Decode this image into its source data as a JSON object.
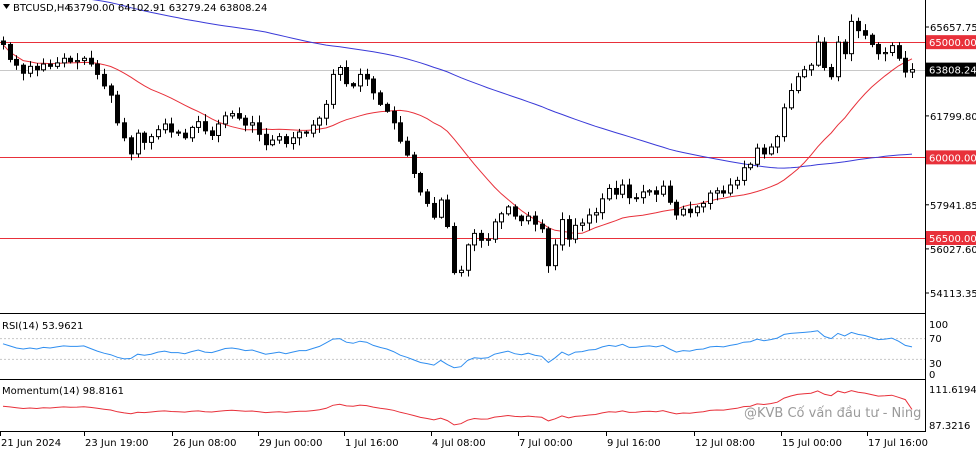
{
  "header": {
    "symbol_tf": "BTCUSD,H4",
    "ohlc": "63790.00 64102.91 63279.24 63808.24"
  },
  "colors": {
    "up_candle": "#ffffff",
    "down_candle": "#000000",
    "level_line": "#e8303a",
    "ma_fast": "#e8303a",
    "ma_slow": "#3a3ad8",
    "rsi_line": "#2f8ef0",
    "momentum_line": "#e8303a",
    "price_tag_bg": "#000000"
  },
  "price_axis": {
    "ticks": [
      "65657.75",
      "61799.80",
      "57941.85",
      "56027.60",
      "54113.35"
    ],
    "tick_values": [
      65657.75,
      61799.8,
      57941.85,
      56027.6,
      54113.35
    ],
    "level_tags": [
      "65000.00",
      "60000.00",
      "56500.00"
    ],
    "current_price": "63808.24"
  },
  "indicators": {
    "rsi": {
      "label": "RSI(14) 53.9621",
      "ticks": [
        "100",
        "70",
        "30",
        "0"
      ]
    },
    "momentum": {
      "label": "Momentum(14) 98.8161",
      "ticks": [
        "111.6194",
        "87.3216"
      ]
    }
  },
  "time_axis": {
    "labels": [
      "21 Jun 2024",
      "23 Jun 19:00",
      "26 Jun 08:00",
      "29 Jun 00:00",
      "1 Jul 16:00",
      "4 Jul 08:00",
      "7 Jul 00:00",
      "9 Jul 16:00",
      "12 Jul 08:00",
      "15 Jul 00:00",
      "17 Jul 16:00"
    ]
  },
  "watermark": "@KVB Cố vấn đầu tư - Ning",
  "chart_data": [
    {
      "type": "candlestick",
      "name": "BTCUSD,H4",
      "y_range": [
        53000,
        66500
      ],
      "horizontal_levels": [
        65000,
        60000,
        56500
      ],
      "current_price": 63808.24,
      "closes": [
        64900,
        64250,
        64000,
        63650,
        63950,
        63800,
        64050,
        63950,
        64100,
        64300,
        64150,
        64200,
        64300,
        64050,
        63600,
        63100,
        62700,
        61500,
        60850,
        60150,
        61050,
        60650,
        60900,
        61200,
        61450,
        61100,
        61050,
        60850,
        61300,
        61550,
        61150,
        60950,
        61450,
        61800,
        61900,
        61700,
        61400,
        61500,
        61000,
        60550,
        60750,
        60900,
        60600,
        60850,
        61100,
        61050,
        61400,
        61700,
        62300,
        63600,
        63900,
        63200,
        63100,
        63600,
        63400,
        62800,
        62300,
        62000,
        61500,
        60700,
        60100,
        59300,
        58500,
        58000,
        57400,
        58150,
        57000,
        55000,
        55100,
        56200,
        56700,
        56400,
        56450,
        57200,
        57550,
        57850,
        57450,
        57250,
        57450,
        57100,
        56900,
        55300,
        56200,
        57300,
        56450,
        57050,
        57150,
        57500,
        57600,
        58200,
        58650,
        58400,
        58800,
        58250,
        58250,
        58500,
        58550,
        58400,
        58750,
        58050,
        57500,
        57750,
        57600,
        57850,
        58000,
        58450,
        58550,
        58450,
        58800,
        59000,
        59550,
        59700,
        60400,
        60150,
        60450,
        60900,
        62150,
        62900,
        63500,
        63800,
        64000,
        65000,
        63900,
        63500,
        65000,
        64500,
        65900,
        65500,
        65300,
        64900,
        64500,
        64550,
        64850,
        64300,
        63700,
        63808
      ]
    },
    {
      "type": "line",
      "name": "RSI(14)",
      "y_range": [
        0,
        100
      ],
      "levels": [
        70,
        30
      ],
      "last_value": 53.9621,
      "values": [
        60,
        56,
        52,
        50,
        52,
        50,
        53,
        52,
        54,
        56,
        55,
        55,
        56,
        51,
        46,
        42,
        39,
        34,
        31,
        32,
        40,
        38,
        40,
        44,
        46,
        43,
        43,
        41,
        45,
        48,
        44,
        43,
        47,
        51,
        52,
        50,
        47,
        48,
        44,
        40,
        42,
        44,
        41,
        44,
        47,
        47,
        51,
        55,
        62,
        69,
        70,
        63,
        61,
        65,
        63,
        57,
        53,
        50,
        45,
        38,
        34,
        29,
        24,
        22,
        19,
        28,
        20,
        14,
        16,
        28,
        33,
        32,
        33,
        40,
        43,
        46,
        41,
        39,
        42,
        38,
        36,
        24,
        33,
        44,
        38,
        44,
        45,
        48,
        49,
        54,
        57,
        55,
        59,
        53,
        53,
        55,
        56,
        54,
        57,
        50,
        44,
        47,
        46,
        49,
        50,
        54,
        55,
        54,
        57,
        59,
        63,
        64,
        69,
        66,
        68,
        71,
        78,
        80,
        81,
        82,
        83,
        85,
        74,
        70,
        80,
        75,
        82,
        78,
        76,
        72,
        68,
        69,
        71,
        65,
        57,
        54
      ]
    },
    {
      "type": "line",
      "name": "Momentum(14)",
      "y_range": [
        86.5,
        113
      ],
      "last_value": 98.8161,
      "values": [
        101,
        100.5,
        100,
        99.5,
        99.8,
        99.5,
        100,
        99.8,
        100.2,
        100.5,
        100.3,
        100.4,
        100.6,
        100.2,
        99.6,
        99,
        98.5,
        97.3,
        96.6,
        96,
        97,
        96.8,
        97.2,
        97.6,
        97.9,
        97.5,
        97.4,
        97.1,
        97.6,
        97.9,
        97.4,
        97.2,
        97.7,
        98.1,
        98.3,
        98,
        97.7,
        97.8,
        97.3,
        96.8,
        97.1,
        97.3,
        96.9,
        97.3,
        97.7,
        97.6,
        98.1,
        98.6,
        99.6,
        101.6,
        102.2,
        101.2,
        101,
        101.7,
        101.4,
        100.4,
        99.6,
        99.1,
        98.3,
        97,
        96,
        94.9,
        93.6,
        92.9,
        92,
        93.1,
        91.5,
        88.7,
        89.5,
        91.8,
        92.9,
        92.5,
        92.6,
        93.8,
        94.3,
        94.9,
        94.3,
        94.1,
        94.5,
        94,
        93.7,
        91.3,
        92.7,
        94.6,
        93.3,
        94.3,
        94.6,
        95.2,
        95.5,
        96.6,
        97.4,
        97.1,
        97.9,
        96.9,
        97,
        97.5,
        97.7,
        97.4,
        98.1,
        96.9,
        95.9,
        96.5,
        96.3,
        96.9,
        97.3,
        98.2,
        98.5,
        98.4,
        99.1,
        99.6,
        100.7,
        101,
        102.5,
        102.1,
        102.7,
        103.6,
        106.3,
        107.7,
        108.7,
        109.2,
        109.5,
        111,
        108.8,
        107.9,
        110.9,
        109.8,
        111.2,
        110.2,
        109.6,
        108.6,
        107.6,
        107.8,
        108.2,
        106.8,
        105.3,
        98.8
      ]
    }
  ]
}
